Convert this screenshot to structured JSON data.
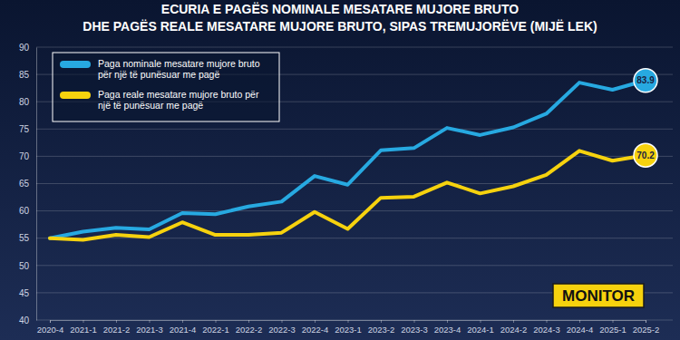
{
  "chart_data": {
    "type": "line",
    "title": "ECURIA E PAGËS NOMINALE MESATARE MUJORE BRUTO",
    "subtitle": "DHE PAGËS REALE MESATARE MUJORE BRUTO, SIPAS TREMUJORËVE (MIJË LEK)",
    "categories": [
      "2020-4",
      "2021-1",
      "2021-2",
      "2021-3",
      "2021-4",
      "2022-1",
      "2022-2",
      "2022-3",
      "2022-4",
      "2023-1",
      "2023-2",
      "2023-3",
      "2023-4",
      "2024-1",
      "2024-2",
      "2024-3",
      "2024-4",
      "2025-1",
      "2025-2"
    ],
    "series": [
      {
        "name": "Paga nominale mesatare mujore bruto për një të punësuar me pagë",
        "color": "#27a9e1",
        "values": [
          55.0,
          56.2,
          56.9,
          56.6,
          59.6,
          59.4,
          60.8,
          61.7,
          66.4,
          64.8,
          71.1,
          71.5,
          75.2,
          73.9,
          75.3,
          77.8,
          83.5,
          82.2,
          83.9
        ]
      },
      {
        "name": "Paga reale mesatare mujore bruto për një të punësuar me pagë",
        "color": "#f6d20e",
        "values": [
          55.0,
          54.7,
          55.6,
          55.2,
          57.9,
          55.6,
          55.6,
          56.0,
          59.8,
          56.7,
          62.4,
          62.6,
          65.2,
          63.2,
          64.5,
          66.6,
          71.0,
          69.2,
          70.2
        ]
      }
    ],
    "annotations": [
      {
        "text": "83.9",
        "x": "2025-2",
        "y": 83.9,
        "color": "#27a9e1"
      },
      {
        "text": "70.2",
        "x": "2025-2",
        "y": 70.2,
        "color": "#f6d20e"
      }
    ],
    "credit": "MONITOR",
    "ylim": [
      40,
      90
    ],
    "yticks": [
      40,
      45,
      50,
      55,
      60,
      65,
      70,
      75,
      80,
      85,
      90
    ],
    "grid": true,
    "legend": "top-left"
  }
}
